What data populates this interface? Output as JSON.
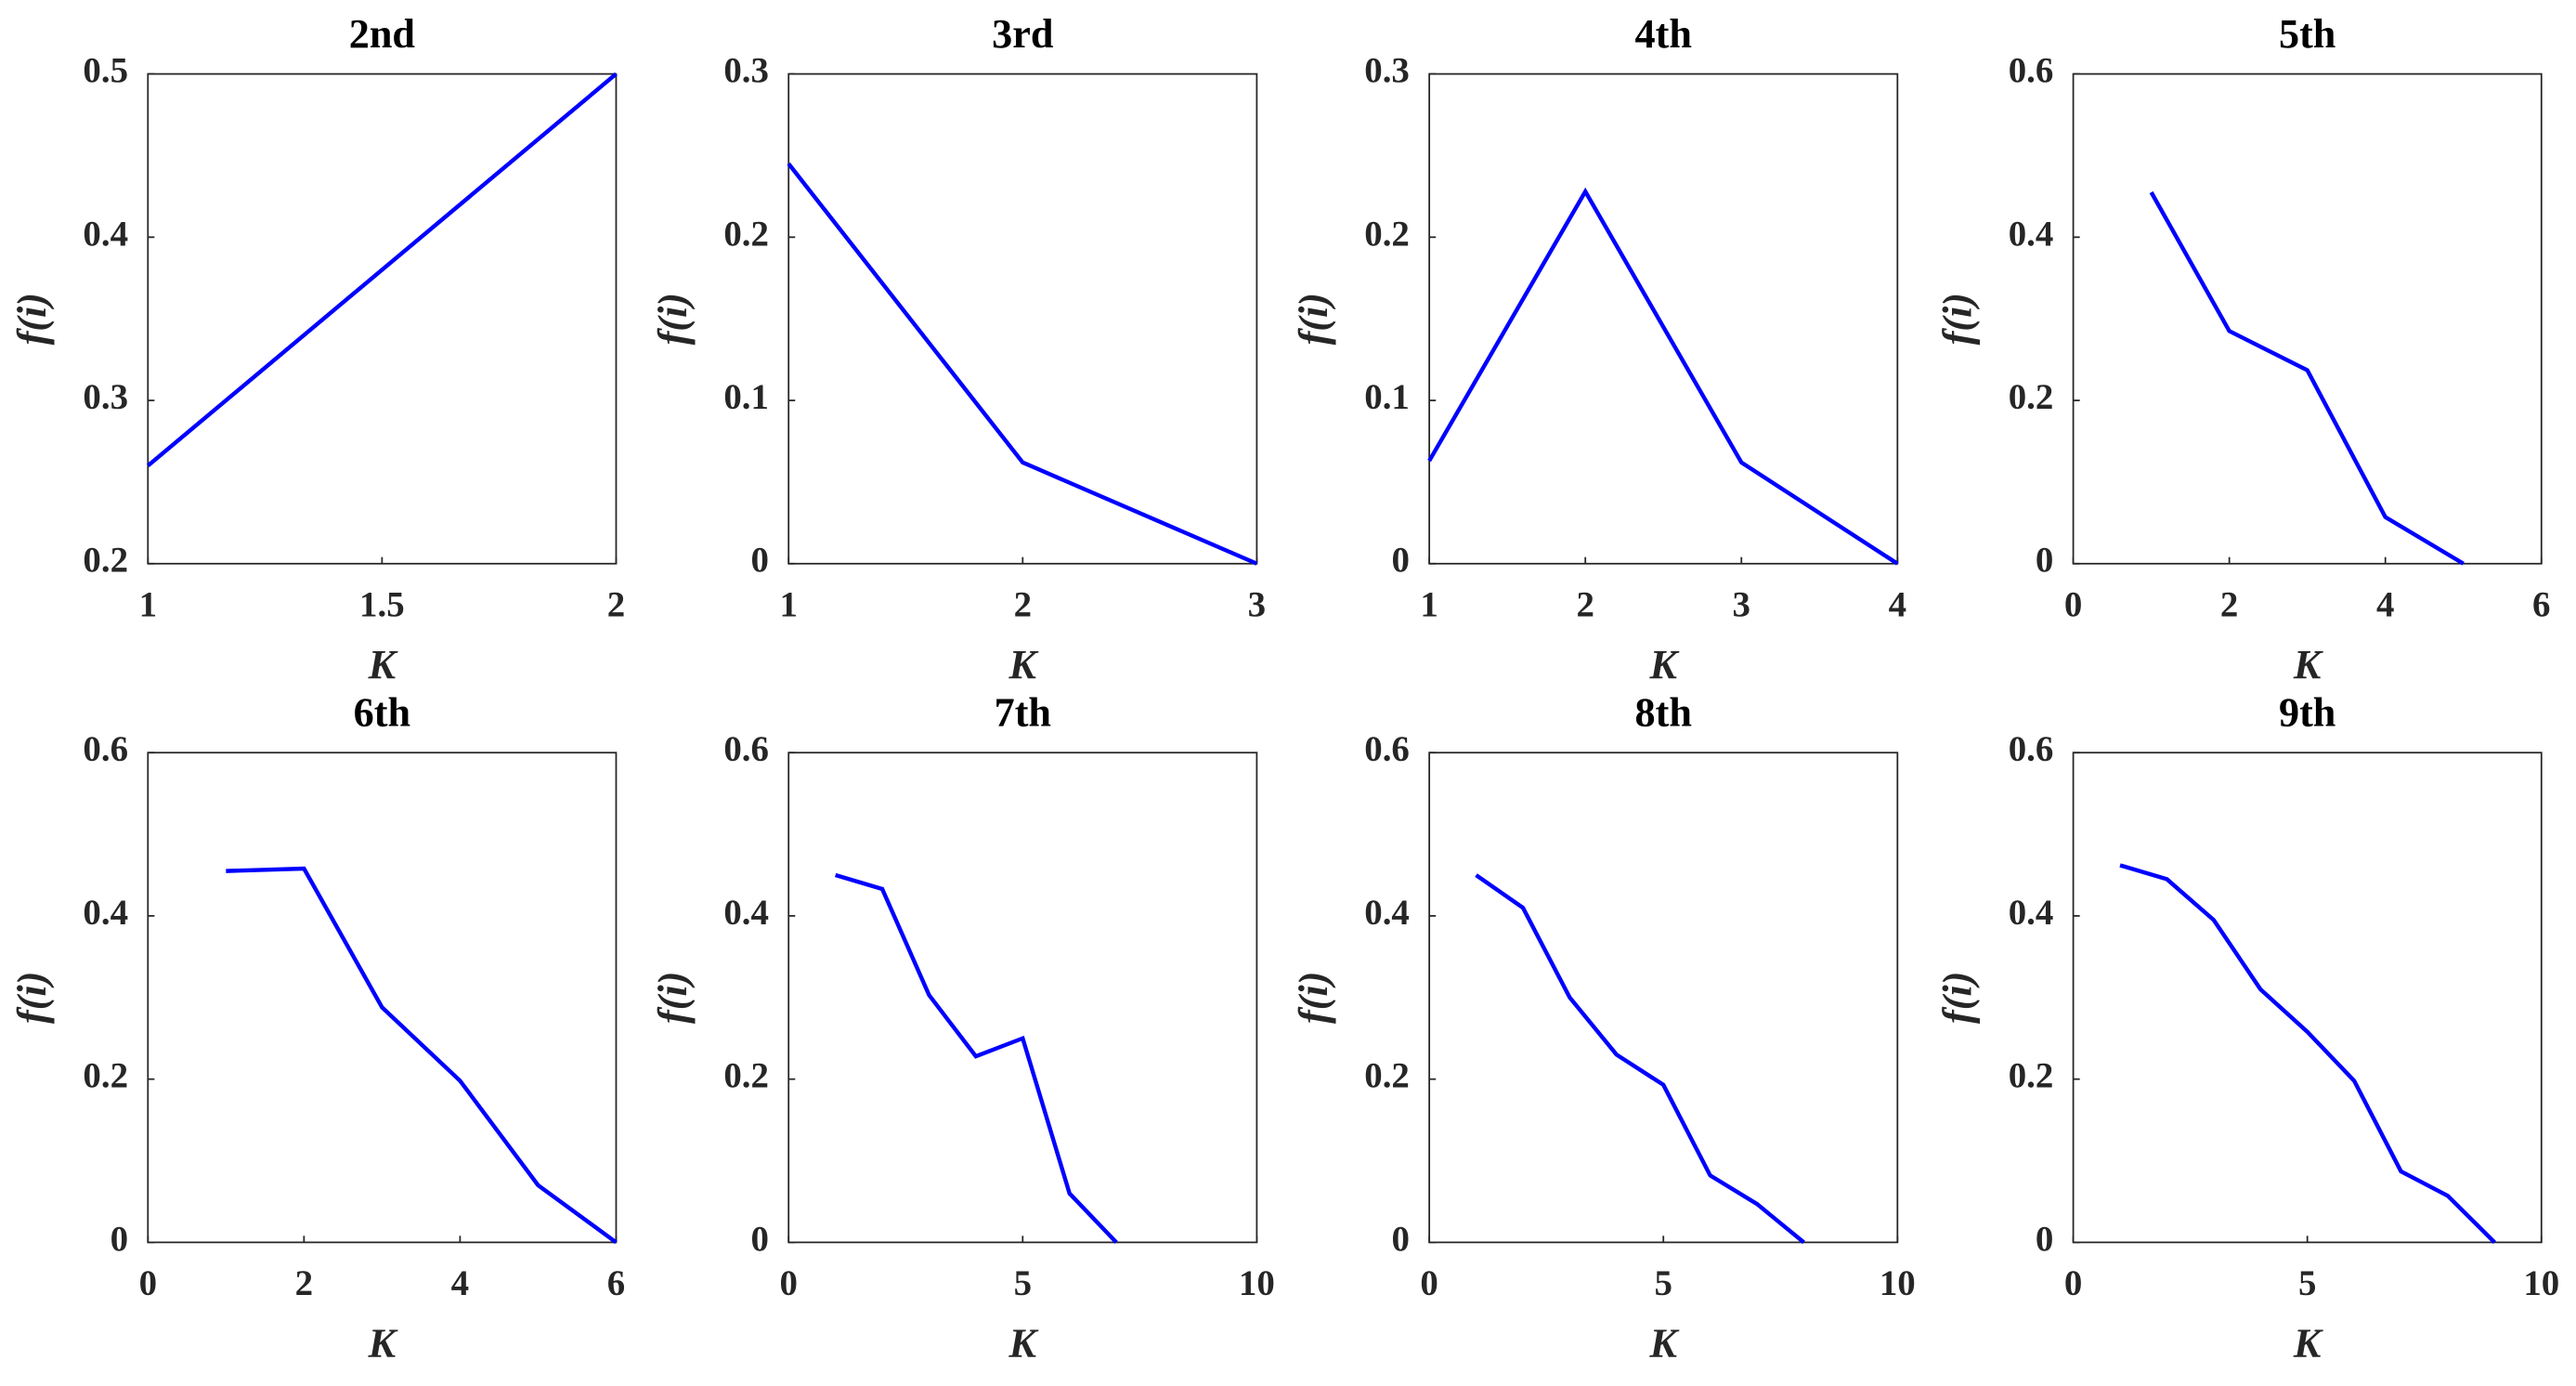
{
  "chart_data": [
    {
      "type": "line",
      "title": "2nd",
      "xlabel": "K",
      "ylabel": "f(i)",
      "color": "#0000ff",
      "x": [
        1,
        2
      ],
      "values": [
        0.26,
        0.5
      ],
      "xlim": [
        1,
        2
      ],
      "xticks": [
        1,
        1.5,
        2
      ],
      "ylim": [
        0.2,
        0.5
      ],
      "yticks": [
        0.2,
        0.3,
        0.4,
        0.5
      ]
    },
    {
      "type": "line",
      "title": "3rd",
      "xlabel": "K",
      "ylabel": "f(i)",
      "color": "#0000ff",
      "x": [
        1,
        2,
        3
      ],
      "values": [
        0.245,
        0.062,
        0
      ],
      "xlim": [
        1,
        3
      ],
      "xticks": [
        1,
        2,
        3
      ],
      "ylim": [
        0,
        0.3
      ],
      "yticks": [
        0,
        0.1,
        0.2,
        0.3
      ]
    },
    {
      "type": "line",
      "title": "4th",
      "xlabel": "K",
      "ylabel": "f(i)",
      "color": "#0000ff",
      "x": [
        1,
        2,
        3,
        4
      ],
      "values": [
        0.063,
        0.228,
        0.062,
        0
      ],
      "xlim": [
        1,
        4
      ],
      "xticks": [
        1,
        2,
        3,
        4
      ],
      "ylim": [
        0,
        0.3
      ],
      "yticks": [
        0,
        0.1,
        0.2,
        0.3
      ]
    },
    {
      "type": "line",
      "title": "5th",
      "xlabel": "K",
      "ylabel": "f(i)",
      "color": "#0000ff",
      "x": [
        1,
        2,
        3,
        4,
        5
      ],
      "values": [
        0.455,
        0.285,
        0.237,
        0.057,
        0
      ],
      "xlim": [
        0,
        6
      ],
      "xticks": [
        0,
        2,
        4,
        6
      ],
      "ylim": [
        0,
        0.6
      ],
      "yticks": [
        0,
        0.2,
        0.4,
        0.6
      ]
    },
    {
      "type": "line",
      "title": "6th",
      "xlabel": "K",
      "ylabel": "f(i)",
      "color": "#0000ff",
      "x": [
        1,
        2,
        3,
        4,
        5,
        6
      ],
      "values": [
        0.455,
        0.458,
        0.288,
        0.198,
        0.07,
        0
      ],
      "xlim": [
        0,
        6
      ],
      "xticks": [
        0,
        2,
        4,
        6
      ],
      "ylim": [
        0,
        0.6
      ],
      "yticks": [
        0,
        0.2,
        0.4,
        0.6
      ]
    },
    {
      "type": "line",
      "title": "7th",
      "xlabel": "K",
      "ylabel": "f(i)",
      "color": "#0000ff",
      "x": [
        1,
        2,
        3,
        4,
        5,
        6,
        7
      ],
      "values": [
        0.45,
        0.433,
        0.303,
        0.228,
        0.25,
        0.06,
        0
      ],
      "xlim": [
        0,
        10
      ],
      "xticks": [
        0,
        5,
        10
      ],
      "ylim": [
        0,
        0.6
      ],
      "yticks": [
        0,
        0.2,
        0.4,
        0.6
      ]
    },
    {
      "type": "line",
      "title": "8th",
      "xlabel": "K",
      "ylabel": "f(i)",
      "color": "#0000ff",
      "x": [
        1,
        2,
        3,
        4,
        5,
        6,
        7,
        8
      ],
      "values": [
        0.45,
        0.41,
        0.3,
        0.23,
        0.193,
        0.082,
        0.047,
        0
      ],
      "xlim": [
        0,
        10
      ],
      "xticks": [
        0,
        5,
        10
      ],
      "ylim": [
        0,
        0.6
      ],
      "yticks": [
        0,
        0.2,
        0.4,
        0.6
      ]
    },
    {
      "type": "line",
      "title": "9th",
      "xlabel": "K",
      "ylabel": "f(i)",
      "color": "#0000ff",
      "x": [
        1,
        2,
        3,
        4,
        5,
        6,
        7,
        8,
        9
      ],
      "values": [
        0.462,
        0.445,
        0.395,
        0.31,
        0.258,
        0.198,
        0.087,
        0.057,
        0
      ],
      "xlim": [
        0,
        10
      ],
      "xticks": [
        0,
        5,
        10
      ],
      "ylim": [
        0,
        0.6
      ],
      "yticks": [
        0,
        0.2,
        0.4,
        0.6
      ]
    }
  ]
}
